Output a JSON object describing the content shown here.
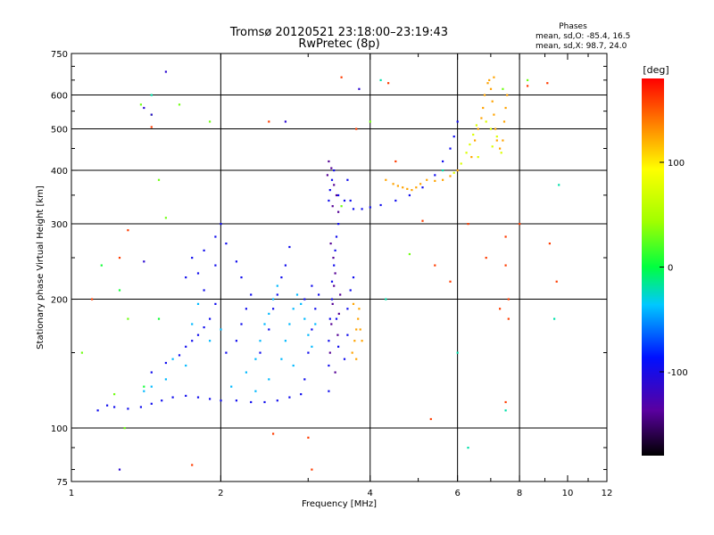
{
  "chart_data": {
    "type": "scatter",
    "title": "Tromsø 20120521 23:18:00–23:19:43",
    "subtitle": "RwPretec (8p)",
    "xlabel": "Frequency [MHz]",
    "ylabel": "Stationary phase Virtual Height [km]",
    "x_scale": "log",
    "y_scale": "log",
    "xlim": [
      1,
      12
    ],
    "ylim": [
      75,
      750
    ],
    "x_ticks": [
      1,
      2,
      4,
      6,
      8,
      10,
      12
    ],
    "x_tick_labels": [
      "1",
      "2",
      "4",
      "6",
      "8",
      "10",
      "12"
    ],
    "y_ticks": [
      75,
      100,
      200,
      300,
      400,
      500,
      600,
      750
    ],
    "y_tick_labels": [
      "75",
      "100",
      "200",
      "300",
      "400",
      "500",
      "600",
      "750"
    ],
    "x_grid": [
      2,
      4,
      6,
      8
    ],
    "y_grid": [
      100,
      200,
      300,
      400,
      500,
      600
    ],
    "grid": true,
    "phases_box": {
      "title": "Phases",
      "line1": "mean, sd,O: -85.4, 16.5",
      "line2": "mean, sd,X:  98.7, 24.0"
    },
    "colorbar": {
      "label": "[deg]",
      "range": [
        -180,
        180
      ],
      "ticks": [
        100,
        0,
        -100
      ],
      "tick_labels": [
        "100",
        "0",
        "-100"
      ]
    },
    "series": [
      {
        "name": "",
        "phase_deg": -95,
        "points": [
          [
            1.13,
            110
          ],
          [
            1.18,
            113
          ],
          [
            1.22,
            112
          ],
          [
            1.3,
            111
          ],
          [
            1.38,
            112
          ],
          [
            1.45,
            114
          ],
          [
            1.52,
            116
          ],
          [
            1.6,
            118
          ],
          [
            1.7,
            119
          ],
          [
            1.8,
            118
          ],
          [
            1.9,
            117
          ],
          [
            2.0,
            116
          ],
          [
            2.15,
            116
          ],
          [
            2.3,
            115
          ],
          [
            2.45,
            115
          ],
          [
            2.6,
            116
          ],
          [
            2.75,
            118
          ],
          [
            2.9,
            120
          ],
          [
            1.45,
            135
          ],
          [
            1.55,
            142
          ],
          [
            1.65,
            148
          ],
          [
            1.7,
            155
          ],
          [
            1.75,
            160
          ],
          [
            1.8,
            165
          ],
          [
            1.85,
            172
          ],
          [
            1.9,
            180
          ],
          [
            1.95,
            195
          ],
          [
            1.85,
            210
          ],
          [
            1.8,
            230
          ],
          [
            1.85,
            260
          ],
          [
            1.95,
            280
          ],
          [
            1.75,
            250
          ],
          [
            1.7,
            225
          ],
          [
            2.05,
            150
          ],
          [
            2.15,
            160
          ],
          [
            2.2,
            175
          ],
          [
            2.25,
            190
          ],
          [
            2.3,
            205
          ],
          [
            2.2,
            225
          ],
          [
            2.15,
            245
          ],
          [
            2.05,
            270
          ],
          [
            2.0,
            300
          ],
          [
            1.95,
            240
          ],
          [
            2.4,
            150
          ],
          [
            2.5,
            170
          ],
          [
            2.55,
            190
          ],
          [
            2.6,
            205
          ],
          [
            2.65,
            225
          ],
          [
            2.7,
            240
          ],
          [
            2.75,
            265
          ],
          [
            2.95,
            130
          ],
          [
            3.0,
            150
          ],
          [
            3.05,
            170
          ],
          [
            3.1,
            190
          ],
          [
            3.15,
            205
          ],
          [
            3.05,
            215
          ],
          [
            2.95,
            200
          ],
          [
            3.3,
            122
          ],
          [
            3.3,
            140
          ],
          [
            3.3,
            160
          ],
          [
            3.32,
            180
          ],
          [
            3.35,
            200
          ],
          [
            3.35,
            220
          ],
          [
            3.38,
            240
          ],
          [
            3.4,
            260
          ],
          [
            3.42,
            280
          ],
          [
            3.45,
            300
          ],
          [
            3.42,
            180
          ],
          [
            3.45,
            155
          ],
          [
            3.3,
            340
          ],
          [
            3.32,
            360
          ],
          [
            3.35,
            380
          ],
          [
            3.38,
            400
          ],
          [
            3.45,
            350
          ],
          [
            3.55,
            340
          ],
          [
            3.6,
            380
          ],
          [
            3.65,
            340
          ],
          [
            3.7,
            325
          ],
          [
            3.85,
            325
          ],
          [
            4.0,
            328
          ],
          [
            4.2,
            332
          ],
          [
            4.5,
            340
          ],
          [
            4.8,
            350
          ],
          [
            5.1,
            365
          ],
          [
            5.4,
            390
          ],
          [
            5.6,
            420
          ],
          [
            5.8,
            450
          ],
          [
            5.9,
            480
          ],
          [
            6.0,
            520
          ],
          [
            3.55,
            145
          ],
          [
            3.6,
            165
          ],
          [
            3.6,
            190
          ],
          [
            3.65,
            210
          ],
          [
            3.7,
            225
          ]
        ]
      },
      {
        "name": "",
        "phase_deg": -40,
        "points": [
          [
            1.45,
            125
          ],
          [
            1.6,
            145
          ],
          [
            1.7,
            140
          ],
          [
            1.75,
            175
          ],
          [
            1.8,
            195
          ],
          [
            2.1,
            125
          ],
          [
            2.25,
            135
          ],
          [
            2.35,
            145
          ],
          [
            2.4,
            160
          ],
          [
            2.45,
            175
          ],
          [
            2.5,
            185
          ],
          [
            2.55,
            200
          ],
          [
            2.6,
            215
          ],
          [
            2.7,
            160
          ],
          [
            2.75,
            175
          ],
          [
            2.8,
            190
          ],
          [
            2.85,
            205
          ],
          [
            2.9,
            195
          ],
          [
            2.95,
            180
          ],
          [
            3.0,
            165
          ],
          [
            2.65,
            145
          ],
          [
            2.5,
            130
          ],
          [
            2.35,
            122
          ],
          [
            2.8,
            140
          ],
          [
            3.05,
            155
          ],
          [
            3.1,
            175
          ],
          [
            1.9,
            160
          ],
          [
            2.0,
            170
          ],
          [
            1.55,
            130
          ],
          [
            1.4,
            122
          ]
        ]
      },
      {
        "name": "",
        "phase_deg": -140,
        "points": [
          [
            3.32,
            150
          ],
          [
            3.34,
            175
          ],
          [
            3.36,
            195
          ],
          [
            3.38,
            215
          ],
          [
            3.4,
            230
          ],
          [
            3.37,
            250
          ],
          [
            3.33,
            270
          ],
          [
            3.28,
            390
          ],
          [
            3.3,
            420
          ],
          [
            3.34,
            405
          ],
          [
            3.38,
            370
          ],
          [
            3.42,
            350
          ],
          [
            3.45,
            320
          ],
          [
            3.36,
            330
          ],
          [
            3.4,
            135
          ],
          [
            3.44,
            165
          ],
          [
            3.46,
            185
          ],
          [
            3.48,
            205
          ]
        ]
      },
      {
        "name": "",
        "phase_deg": 125,
        "points": [
          [
            3.68,
            150
          ],
          [
            3.72,
            160
          ],
          [
            3.75,
            170
          ],
          [
            3.78,
            180
          ],
          [
            3.8,
            190
          ],
          [
            3.82,
            170
          ],
          [
            3.85,
            160
          ],
          [
            3.75,
            145
          ],
          [
            3.7,
            195
          ],
          [
            4.3,
            380
          ],
          [
            4.45,
            372
          ],
          [
            4.55,
            368
          ],
          [
            4.65,
            365
          ],
          [
            4.75,
            362
          ],
          [
            4.85,
            360
          ],
          [
            4.95,
            365
          ],
          [
            5.05,
            372
          ],
          [
            5.2,
            380
          ],
          [
            5.4,
            378
          ],
          [
            5.6,
            380
          ],
          [
            5.8,
            388
          ],
          [
            6.0,
            400
          ],
          [
            6.4,
            430
          ],
          [
            6.5,
            470
          ],
          [
            6.6,
            500
          ],
          [
            6.7,
            530
          ],
          [
            6.75,
            560
          ],
          [
            6.8,
            600
          ],
          [
            6.9,
            640
          ],
          [
            7.0,
            620
          ],
          [
            7.05,
            580
          ],
          [
            7.1,
            540
          ],
          [
            7.15,
            500
          ],
          [
            7.2,
            470
          ],
          [
            7.3,
            450
          ],
          [
            7.4,
            470
          ],
          [
            7.45,
            520
          ],
          [
            7.5,
            560
          ],
          [
            7.55,
            600
          ],
          [
            6.95,
            650
          ],
          [
            7.1,
            660
          ]
        ]
      },
      {
        "name": "",
        "phase_deg": 75,
        "points": [
          [
            5.9,
            395
          ],
          [
            6.1,
            415
          ],
          [
            6.25,
            440
          ],
          [
            6.35,
            460
          ],
          [
            6.45,
            485
          ],
          [
            6.55,
            510
          ],
          [
            6.85,
            520
          ],
          [
            7.0,
            500
          ],
          [
            7.2,
            480
          ],
          [
            7.35,
            440
          ],
          [
            7.05,
            455
          ],
          [
            6.6,
            430
          ]
        ]
      },
      {
        "name": "",
        "phase_deg": 160,
        "points": [
          [
            1.45,
            505
          ],
          [
            1.1,
            200
          ],
          [
            1.25,
            250
          ],
          [
            1.3,
            290
          ],
          [
            2.5,
            520
          ],
          [
            3.5,
            660
          ],
          [
            3.75,
            500
          ],
          [
            4.35,
            640
          ],
          [
            4.5,
            420
          ],
          [
            5.1,
            305
          ],
          [
            5.4,
            240
          ],
          [
            5.8,
            220
          ],
          [
            6.3,
            300
          ],
          [
            6.85,
            250
          ],
          [
            7.3,
            190
          ],
          [
            7.5,
            280
          ],
          [
            7.6,
            180
          ],
          [
            8.0,
            300
          ],
          [
            8.3,
            630
          ],
          [
            9.1,
            640
          ],
          [
            9.2,
            270
          ],
          [
            9.5,
            220
          ],
          [
            3.0,
            95
          ],
          [
            3.05,
            80
          ],
          [
            1.75,
            82
          ],
          [
            2.55,
            97
          ],
          [
            5.3,
            105
          ],
          [
            7.5,
            240
          ],
          [
            7.6,
            200
          ],
          [
            7.5,
            115
          ]
        ]
      },
      {
        "name": "",
        "phase_deg": 30,
        "points": [
          [
            1.38,
            570
          ],
          [
            1.45,
            540
          ],
          [
            1.5,
            380
          ],
          [
            1.55,
            310
          ],
          [
            1.65,
            570
          ],
          [
            1.9,
            520
          ],
          [
            3.5,
            330
          ],
          [
            4.0,
            520
          ],
          [
            4.8,
            255
          ],
          [
            7.4,
            620
          ],
          [
            8.3,
            650
          ],
          [
            1.3,
            180
          ],
          [
            1.05,
            150
          ],
          [
            1.22,
            120
          ],
          [
            1.28,
            100
          ]
        ]
      },
      {
        "name": "",
        "phase_deg": 5,
        "points": [
          [
            1.15,
            240
          ],
          [
            1.5,
            180
          ],
          [
            1.25,
            210
          ],
          [
            1.4,
            125
          ]
        ]
      },
      {
        "name": "",
        "phase_deg": -20,
        "points": [
          [
            1.45,
            600
          ],
          [
            4.2,
            650
          ],
          [
            5.6,
            400
          ],
          [
            4.3,
            200
          ],
          [
            6.3,
            90
          ],
          [
            6.0,
            150
          ],
          [
            7.5,
            110
          ],
          [
            9.6,
            370
          ],
          [
            9.4,
            180
          ]
        ]
      },
      {
        "name": "",
        "phase_deg": -110,
        "points": [
          [
            1.55,
            680
          ],
          [
            1.4,
            560
          ],
          [
            1.45,
            540
          ],
          [
            1.4,
            245
          ],
          [
            2.7,
            520
          ],
          [
            3.8,
            620
          ],
          [
            1.25,
            80
          ]
        ]
      }
    ]
  }
}
